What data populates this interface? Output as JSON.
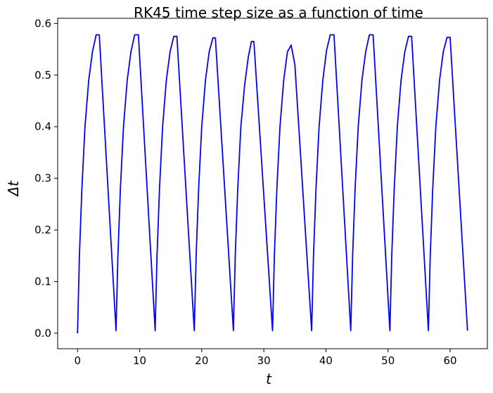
{
  "chart_data": {
    "type": "line",
    "title": "RK45 time step size as a function of time",
    "xlabel": "t",
    "ylabel": "Δt",
    "xlim": [
      -3.2,
      66.0
    ],
    "ylim": [
      -0.03,
      0.61
    ],
    "xticks": [
      0,
      10,
      20,
      30,
      40,
      50,
      60
    ],
    "yticks": [
      0.0,
      0.1,
      0.2,
      0.3,
      0.4,
      0.5,
      0.6
    ],
    "xtick_labels": [
      "0",
      "10",
      "20",
      "30",
      "40",
      "50",
      "60"
    ],
    "ytick_labels": [
      "0.0",
      "0.1",
      "0.2",
      "0.3",
      "0.4",
      "0.5",
      "0.6"
    ],
    "grid": false,
    "series": [
      {
        "color": "#0000ff",
        "x": [
          0.0,
          0.3,
          0.7,
          1.2,
          1.8,
          2.4,
          3.0,
          3.5,
          6.2,
          6.5,
          6.9,
          7.4,
          8.0,
          8.6,
          9.2,
          9.8,
          12.5,
          12.8,
          13.2,
          13.7,
          14.3,
          14.9,
          15.5,
          16.0,
          18.8,
          19.1,
          19.5,
          20.0,
          20.6,
          21.2,
          21.8,
          22.2,
          25.1,
          25.4,
          25.8,
          26.3,
          26.9,
          27.5,
          28.0,
          28.4,
          31.4,
          31.7,
          32.1,
          32.6,
          33.2,
          33.8,
          34.4,
          35.0,
          37.7,
          38.0,
          38.4,
          38.9,
          39.5,
          40.1,
          40.7,
          41.3,
          44.0,
          44.3,
          44.7,
          45.2,
          45.8,
          46.4,
          47.0,
          47.6,
          50.3,
          50.6,
          51.0,
          51.5,
          52.1,
          52.7,
          53.3,
          53.8,
          56.5,
          56.8,
          57.2,
          57.7,
          58.3,
          58.9,
          59.5,
          60.0,
          62.8
        ],
        "y": [
          0.0,
          0.15,
          0.28,
          0.4,
          0.49,
          0.545,
          0.578,
          0.578,
          0.005,
          0.15,
          0.28,
          0.4,
          0.49,
          0.545,
          0.578,
          0.578,
          0.005,
          0.15,
          0.28,
          0.4,
          0.49,
          0.545,
          0.575,
          0.575,
          0.005,
          0.15,
          0.28,
          0.4,
          0.49,
          0.545,
          0.572,
          0.572,
          0.005,
          0.15,
          0.28,
          0.4,
          0.48,
          0.535,
          0.565,
          0.565,
          0.005,
          0.15,
          0.28,
          0.4,
          0.49,
          0.545,
          0.558,
          0.52,
          0.005,
          0.15,
          0.28,
          0.4,
          0.49,
          0.548,
          0.578,
          0.578,
          0.005,
          0.15,
          0.28,
          0.4,
          0.49,
          0.545,
          0.578,
          0.578,
          0.005,
          0.15,
          0.28,
          0.4,
          0.49,
          0.545,
          0.575,
          0.575,
          0.005,
          0.15,
          0.28,
          0.4,
          0.49,
          0.545,
          0.573,
          0.573,
          0.005
        ]
      }
    ]
  }
}
